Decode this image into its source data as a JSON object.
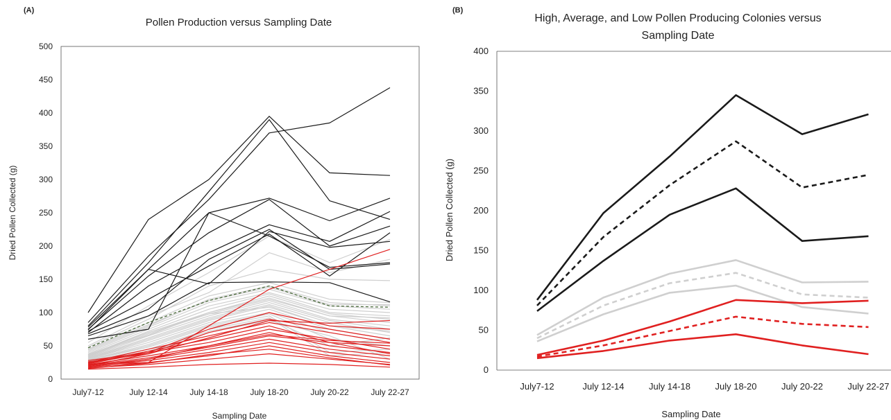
{
  "chart_data": [
    {
      "panel_label": "(A)",
      "type": "line",
      "title": "Pollen Production versus Sampling Date",
      "xlabel": "Sampling Date",
      "ylabel": "Dried Pollen Collected (g)",
      "categories": [
        "July7-12",
        "July 12-14",
        "July 14-18",
        "July 18-20",
        "July 20-22",
        "July 22-27"
      ],
      "ylim": [
        0,
        500
      ],
      "yticks": [
        0,
        50,
        100,
        150,
        200,
        250,
        300,
        350,
        400,
        450,
        500
      ],
      "grid": false,
      "colors": {
        "high": "#1a1a1a",
        "average": "#cfcfcf",
        "low": "#e02020",
        "average_dashed": "#4a6b3a"
      },
      "series_groups": [
        {
          "group": "high",
          "series": [
            {
              "values": [
                100,
                240,
                300,
                395,
                310,
                306
              ]
            },
            {
              "values": [
                85,
                185,
                270,
                370,
                385,
                438
              ]
            },
            {
              "values": [
                80,
                175,
                282,
                390,
                268,
                240
              ]
            },
            {
              "values": [
                78,
                165,
                250,
                272,
                238,
                272
              ]
            },
            {
              "values": [
                75,
                155,
                220,
                270,
                200,
                230
              ]
            },
            {
              "values": [
                70,
                140,
                190,
                232,
                207,
                252
              ]
            },
            {
              "values": [
                72,
                120,
                170,
                218,
                155,
                220
              ]
            },
            {
              "values": [
                68,
                105,
                180,
                225,
                165,
                173
              ]
            },
            {
              "values": [
                65,
                95,
                145,
                146,
                145,
                116
              ]
            },
            {
              "values": [
                74,
                165,
                143,
                222,
                198,
                207
              ]
            },
            {
              "values": [
                60,
                75,
                250,
                215,
                168,
                175
              ]
            }
          ]
        },
        {
          "group": "average",
          "series": [
            {
              "values": [
                55,
                110,
                160,
                215,
                175,
                210
              ]
            },
            {
              "values": [
                50,
                95,
                130,
                190,
                160,
                180
              ]
            },
            {
              "values": [
                48,
                90,
                140,
                165,
                150,
                148
              ]
            },
            {
              "values": [
                45,
                85,
                125,
                145,
                120,
                115
              ]
            },
            {
              "values": [
                42,
                80,
                120,
                140,
                115,
                110
              ]
            },
            {
              "values": [
                40,
                78,
                115,
                135,
                110,
                105
              ]
            },
            {
              "values": [
                38,
                75,
                110,
                130,
                105,
                100
              ]
            },
            {
              "values": [
                36,
                72,
                105,
                128,
                100,
                95
              ]
            },
            {
              "values": [
                35,
                70,
                100,
                125,
                98,
                90
              ]
            },
            {
              "values": [
                34,
                68,
                98,
                120,
                95,
                85
              ]
            },
            {
              "values": [
                33,
                65,
                95,
                118,
                90,
                80
              ]
            },
            {
              "values": [
                32,
                62,
                92,
                115,
                88,
                75
              ]
            },
            {
              "values": [
                31,
                60,
                90,
                112,
                85,
                70
              ]
            },
            {
              "values": [
                30,
                58,
                88,
                110,
                80,
                65
              ]
            },
            {
              "values": [
                30,
                55,
                85,
                105,
                75,
                60
              ]
            },
            {
              "values": [
                29,
                52,
                82,
                100,
                70,
                55
              ]
            },
            {
              "values": [
                28,
                50,
                80,
                98,
                60,
                50
              ]
            },
            {
              "values": [
                28,
                48,
                78,
                95,
                40,
                45
              ]
            },
            {
              "values": [
                27,
                45,
                75,
                92,
                35,
                40
              ]
            },
            {
              "values": [
                26,
                42,
                72,
                90,
                50,
                62
              ]
            },
            {
              "values": [
                25,
                40,
                70,
                88,
                65,
                30
              ]
            },
            {
              "values": [
                36,
                66,
                100,
                122,
                95,
                92
              ]
            },
            {
              "values": [
                44,
                82,
                118,
                138,
                112,
                112
              ]
            },
            {
              "values": [
                37,
                70,
                98,
                108,
                80,
                72
              ]
            }
          ]
        },
        {
          "group": "average_dashed",
          "series": [
            {
              "values": [
                47,
                85,
                118,
                140,
                110,
                108
              ]
            }
          ]
        },
        {
          "group": "low",
          "series": [
            {
              "values": [
                28,
                40,
                75,
                100,
                80,
                75
              ]
            },
            {
              "values": [
                26,
                38,
                70,
                90,
                75,
                60
              ]
            },
            {
              "values": [
                25,
                45,
                65,
                85,
                70,
                55
              ]
            },
            {
              "values": [
                24,
                42,
                60,
                80,
                55,
                50
              ]
            },
            {
              "values": [
                23,
                40,
                55,
                75,
                60,
                45
              ]
            },
            {
              "values": [
                22,
                35,
                50,
                70,
                50,
                40
              ]
            },
            {
              "values": [
                21,
                32,
                48,
                65,
                55,
                38
              ]
            },
            {
              "values": [
                20,
                30,
                45,
                60,
                45,
                35
              ]
            },
            {
              "values": [
                19,
                28,
                40,
                55,
                40,
                30
              ]
            },
            {
              "values": [
                18,
                25,
                35,
                50,
                35,
                25
              ]
            },
            {
              "values": [
                17,
                22,
                30,
                38,
                30,
                22
              ]
            },
            {
              "values": [
                15,
                18,
                22,
                24,
                22,
                18
              ]
            },
            {
              "values": [
                22,
                25,
                80,
                135,
                165,
                195
              ]
            },
            {
              "values": [
                20,
                38,
                62,
                88,
                84,
                88
              ]
            },
            {
              "values": [
                18,
                30,
                50,
                67,
                58,
                54
              ]
            },
            {
              "values": [
                16,
                24,
                37,
                45,
                32,
                21
              ]
            }
          ]
        }
      ]
    },
    {
      "panel_label": "(B)",
      "type": "line",
      "title": "High, Average, and Low Pollen Producing Colonies versus Sampling Date",
      "title_lines": [
        "High, Average, and Low Pollen Producing Colonies versus",
        "Sampling Date"
      ],
      "xlabel": "Sampling Date",
      "ylabel": "Dried Pollen Collected (g)",
      "categories": [
        "July7-12",
        "July 12-14",
        "July 14-18",
        "July 18-20",
        "July 20-22",
        "July 22-27"
      ],
      "ylim": [
        0,
        400
      ],
      "yticks": [
        0,
        50,
        100,
        150,
        200,
        250,
        300,
        350,
        400
      ],
      "grid": false,
      "colors": {
        "high": "#1a1a1a",
        "average": "#cfcfcf",
        "low": "#e02020"
      },
      "series": [
        {
          "group": "high",
          "style": "solid",
          "values": [
            88,
            197,
            268,
            345,
            296,
            321
          ]
        },
        {
          "group": "high",
          "style": "dashed",
          "values": [
            81,
            167,
            232,
            287,
            229,
            245
          ]
        },
        {
          "group": "high",
          "style": "solid",
          "values": [
            74,
            137,
            195,
            228,
            162,
            168
          ]
        },
        {
          "group": "average",
          "style": "solid",
          "values": [
            44,
            91,
            121,
            138,
            110,
            111
          ]
        },
        {
          "group": "average",
          "style": "dashed",
          "values": [
            40,
            81,
            109,
            122,
            95,
            91
          ]
        },
        {
          "group": "average",
          "style": "solid",
          "values": [
            36,
            70,
            97,
            106,
            79,
            71
          ]
        },
        {
          "group": "low",
          "style": "solid",
          "values": [
            19,
            37,
            61,
            88,
            84,
            87
          ]
        },
        {
          "group": "low",
          "style": "dashed",
          "values": [
            17,
            31,
            49,
            67,
            58,
            54
          ]
        },
        {
          "group": "low",
          "style": "solid",
          "values": [
            15,
            24,
            37,
            45,
            31,
            20
          ]
        }
      ]
    }
  ]
}
